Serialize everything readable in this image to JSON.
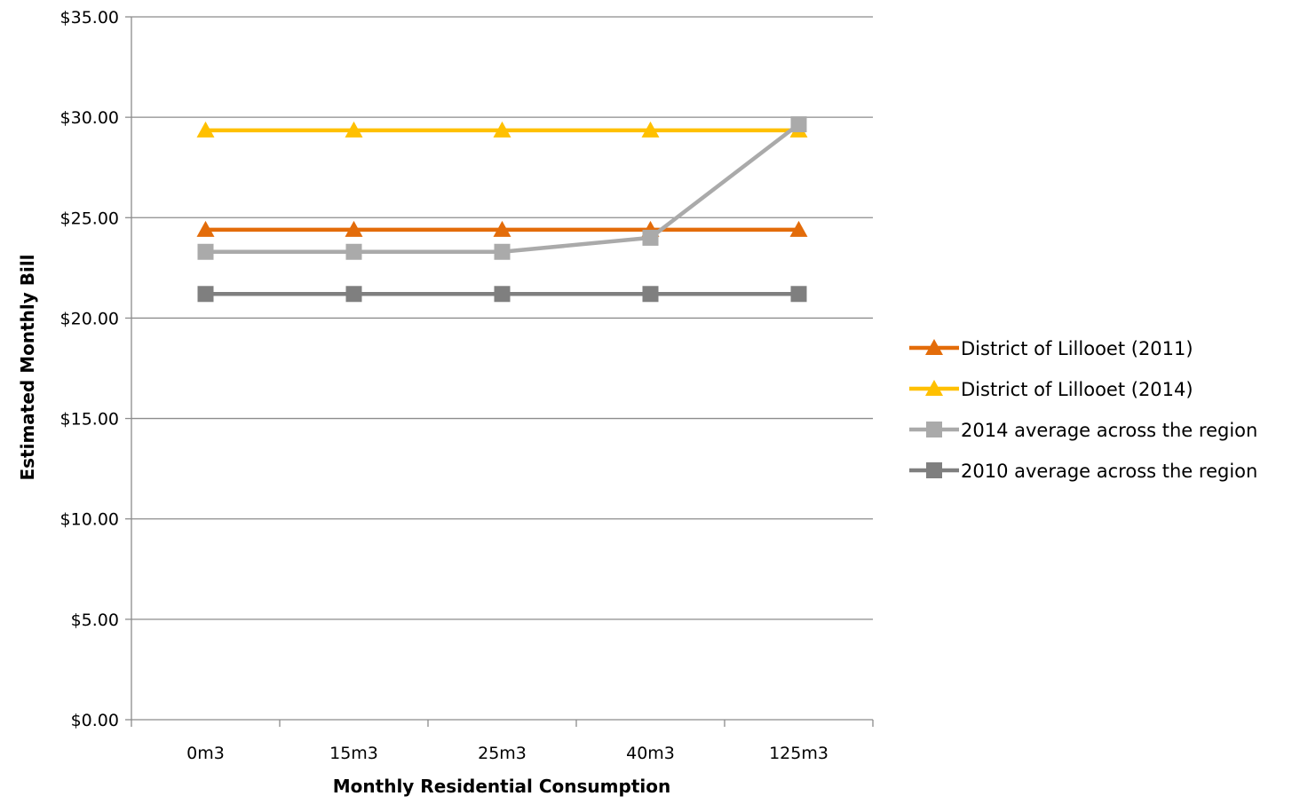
{
  "chart_data": {
    "type": "line",
    "title": "",
    "xlabel": "Monthly Residential Consumption",
    "ylabel": "Estimated Monthly Bill",
    "categories": [
      "0m3",
      "15m3",
      "25m3",
      "40m3",
      "125m3"
    ],
    "ylim": [
      0,
      35
    ],
    "yticks": [
      0,
      5,
      10,
      15,
      20,
      25,
      30,
      35
    ],
    "ytick_labels": [
      "$0.00",
      "$5.00",
      "$10.00",
      "$15.00",
      "$20.00",
      "$25.00",
      "$30.00",
      "$35.00"
    ],
    "grid": true,
    "legend_position": "right",
    "series": [
      {
        "name": "District of Lillooet (2011)",
        "values": [
          24.4,
          24.4,
          24.4,
          24.4,
          24.4
        ],
        "color": "#E36C0A",
        "marker": "triangle"
      },
      {
        "name": "District of Lillooet (2014)",
        "values": [
          29.35,
          29.35,
          29.35,
          29.35,
          29.35
        ],
        "color": "#FFC000",
        "marker": "triangle"
      },
      {
        "name": "2014 average across the region",
        "values": [
          23.3,
          23.3,
          23.3,
          24.0,
          29.65
        ],
        "color": "#AAAAAA",
        "marker": "square"
      },
      {
        "name": "2010 average across the region",
        "values": [
          21.2,
          21.2,
          21.2,
          21.2,
          21.2
        ],
        "color": "#7F7F7F",
        "marker": "square"
      }
    ]
  }
}
